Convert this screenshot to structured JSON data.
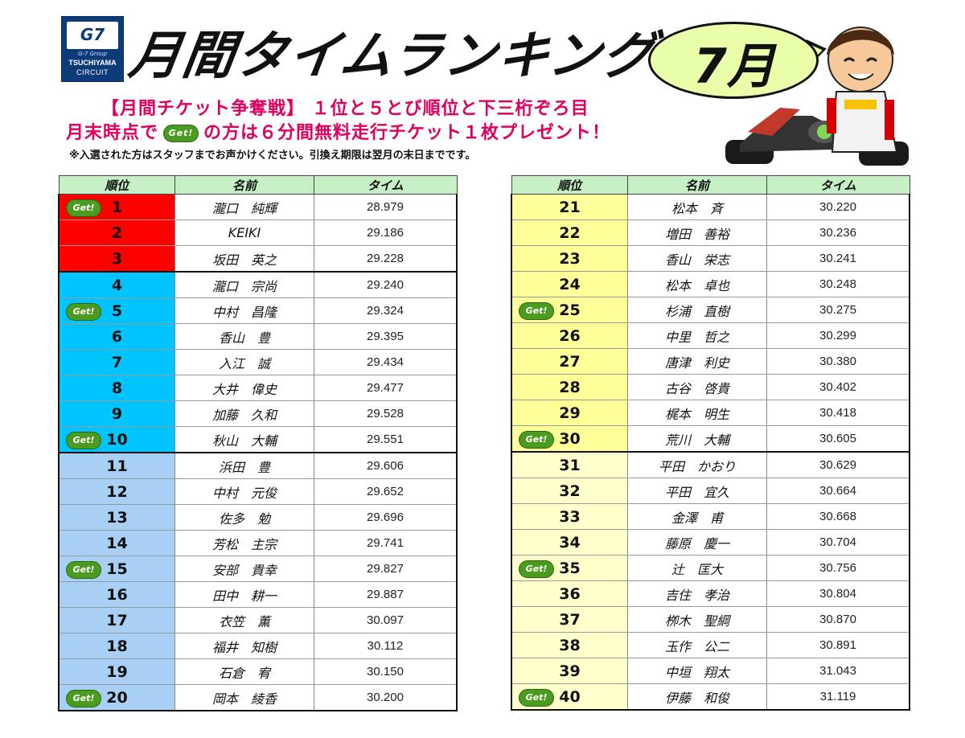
{
  "logo": {
    "top": "G7",
    "group": "G-7 Group",
    "line1": "TSUCHIYAMA",
    "line2": "CIRCUIT"
  },
  "title": "月間タイムランキング",
  "month": "7月",
  "promo": {
    "line1": "【月間チケット争奪戦】 １位と５とび順位と下三桁ぞろ目",
    "line2_pre": "月末時点で",
    "line2_post": "の方は６分間無料走行チケット１枚プレゼント！",
    "note": "※入選された方はスタッフまでお声かけください。引換え期限は翌月の末日までです。"
  },
  "badge_text": "Get!",
  "headers": {
    "rank": "順位",
    "name": "名前",
    "time": "タイム"
  },
  "colors": {
    "red": "#ff0000",
    "cyan": "#00c4ff",
    "lightblue": "#a8d0f5",
    "yellow": "#ffff99",
    "paleyellow": "#ffffcc",
    "header": "#c6efc6",
    "badge": "#4a9b1f"
  },
  "left": [
    {
      "rank": "1",
      "name": "瀧口　純輝",
      "time": "28.979",
      "get": true,
      "color": "red"
    },
    {
      "rank": "2",
      "name": "KEIKI",
      "time": "29.186",
      "get": false,
      "color": "red"
    },
    {
      "rank": "3",
      "name": "坂田　英之",
      "time": "29.228",
      "get": false,
      "color": "red",
      "end": true
    },
    {
      "rank": "4",
      "name": "瀧口　宗尚",
      "time": "29.240",
      "get": false,
      "color": "cyan"
    },
    {
      "rank": "5",
      "name": "中村　昌隆",
      "time": "29.324",
      "get": true,
      "color": "cyan"
    },
    {
      "rank": "6",
      "name": "香山　豊",
      "time": "29.395",
      "get": false,
      "color": "cyan"
    },
    {
      "rank": "7",
      "name": "入江　誠",
      "time": "29.434",
      "get": false,
      "color": "cyan"
    },
    {
      "rank": "8",
      "name": "大井　偉史",
      "time": "29.477",
      "get": false,
      "color": "cyan"
    },
    {
      "rank": "9",
      "name": "加藤　久和",
      "time": "29.528",
      "get": false,
      "color": "cyan"
    },
    {
      "rank": "10",
      "name": "秋山　大輔",
      "time": "29.551",
      "get": true,
      "color": "cyan",
      "end": true
    },
    {
      "rank": "11",
      "name": "浜田　豊",
      "time": "29.606",
      "get": false,
      "color": "lightblue"
    },
    {
      "rank": "12",
      "name": "中村　元俊",
      "time": "29.652",
      "get": false,
      "color": "lightblue"
    },
    {
      "rank": "13",
      "name": "佐多　勉",
      "time": "29.696",
      "get": false,
      "color": "lightblue"
    },
    {
      "rank": "14",
      "name": "芳松　主宗",
      "time": "29.741",
      "get": false,
      "color": "lightblue"
    },
    {
      "rank": "15",
      "name": "安部　貴幸",
      "time": "29.827",
      "get": true,
      "color": "lightblue"
    },
    {
      "rank": "16",
      "name": "田中　耕一",
      "time": "29.887",
      "get": false,
      "color": "lightblue"
    },
    {
      "rank": "17",
      "name": "衣笠　薫",
      "time": "30.097",
      "get": false,
      "color": "lightblue"
    },
    {
      "rank": "18",
      "name": "福井　知樹",
      "time": "30.112",
      "get": false,
      "color": "lightblue"
    },
    {
      "rank": "19",
      "name": "石倉　宥",
      "time": "30.150",
      "get": false,
      "color": "lightblue"
    },
    {
      "rank": "20",
      "name": "岡本　綾香",
      "time": "30.200",
      "get": true,
      "color": "lightblue"
    }
  ],
  "right": [
    {
      "rank": "21",
      "name": "松本　斉",
      "time": "30.220",
      "get": false,
      "color": "yellow"
    },
    {
      "rank": "22",
      "name": "増田　善裕",
      "time": "30.236",
      "get": false,
      "color": "yellow"
    },
    {
      "rank": "23",
      "name": "香山　栄志",
      "time": "30.241",
      "get": false,
      "color": "yellow"
    },
    {
      "rank": "24",
      "name": "松本　卓也",
      "time": "30.248",
      "get": false,
      "color": "yellow"
    },
    {
      "rank": "25",
      "name": "杉浦　直樹",
      "time": "30.275",
      "get": true,
      "color": "yellow"
    },
    {
      "rank": "26",
      "name": "中里　哲之",
      "time": "30.299",
      "get": false,
      "color": "yellow"
    },
    {
      "rank": "27",
      "name": "唐津　利史",
      "time": "30.380",
      "get": false,
      "color": "yellow"
    },
    {
      "rank": "28",
      "name": "古谷　啓貴",
      "time": "30.402",
      "get": false,
      "color": "yellow"
    },
    {
      "rank": "29",
      "name": "梶本　明生",
      "time": "30.418",
      "get": false,
      "color": "yellow"
    },
    {
      "rank": "30",
      "name": "荒川　大輔",
      "time": "30.605",
      "get": true,
      "color": "yellow",
      "end": true
    },
    {
      "rank": "31",
      "name": "平田　かおり",
      "time": "30.629",
      "get": false,
      "color": "paleyellow"
    },
    {
      "rank": "32",
      "name": "平田　宜久",
      "time": "30.664",
      "get": false,
      "color": "paleyellow"
    },
    {
      "rank": "33",
      "name": "金澤　甫",
      "time": "30.668",
      "get": false,
      "color": "paleyellow"
    },
    {
      "rank": "34",
      "name": "藤原　慶一",
      "time": "30.704",
      "get": false,
      "color": "paleyellow"
    },
    {
      "rank": "35",
      "name": "辻　匡大",
      "time": "30.756",
      "get": true,
      "color": "paleyellow"
    },
    {
      "rank": "36",
      "name": "吉住　孝治",
      "time": "30.804",
      "get": false,
      "color": "paleyellow"
    },
    {
      "rank": "37",
      "name": "栁木　聖綱",
      "time": "30.870",
      "get": false,
      "color": "paleyellow"
    },
    {
      "rank": "38",
      "name": "玉作　公二",
      "time": "30.891",
      "get": false,
      "color": "paleyellow"
    },
    {
      "rank": "39",
      "name": "中垣　翔太",
      "time": "31.043",
      "get": false,
      "color": "paleyellow"
    },
    {
      "rank": "40",
      "name": "伊藤　和俊",
      "time": "31.119",
      "get": true,
      "color": "paleyellow"
    }
  ]
}
